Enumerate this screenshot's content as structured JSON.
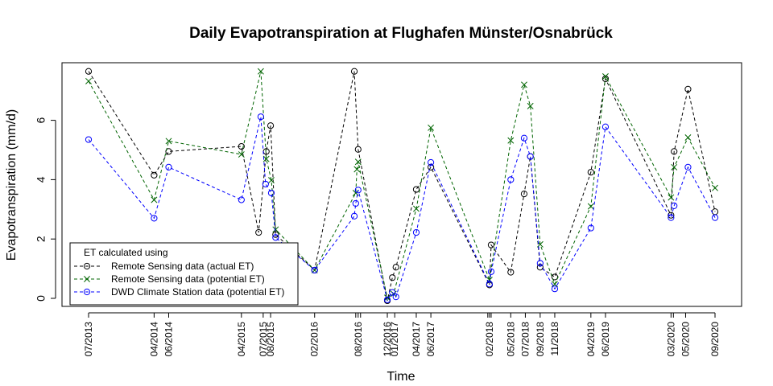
{
  "chart_data": {
    "type": "line",
    "title": "Daily Evapotranspiration at Flughafen Münster/Osnabrück",
    "xlabel": "Time",
    "ylabel": "Evapotranspiration (mm/d)",
    "ylim": [
      0,
      7.7
    ],
    "yticks": [
      0,
      2,
      4,
      6
    ],
    "x": [
      "2013-07",
      "2014-04a",
      "2014-04b",
      "2014-06",
      "2015-04",
      "2015-06",
      "2015-07",
      "2015-07b",
      "2015-08",
      "2015-09",
      "2016-02",
      "2016-07",
      "2016-08a",
      "2016-08b",
      "2016-09",
      "2016-11",
      "2016-12",
      "2017-01",
      "2017-04",
      "2017-06",
      "2018-02a",
      "2018-02b",
      "2018-05",
      "2018-07",
      "2018-08",
      "2018-08b",
      "2018-09",
      "2018-11",
      "2019-04",
      "2019-06",
      "2020-03",
      "2020-03b",
      "2020-05",
      "2020-09"
    ],
    "xticks": [
      {
        "date": "2013-07-15",
        "label": "07/2013"
      },
      {
        "date": "2014-04-15",
        "label": "04/2014"
      },
      {
        "date": "2014-06-15",
        "label": "06/2014"
      },
      {
        "date": "2015-04-15",
        "label": "04/2015"
      },
      {
        "date": "2015-07-15",
        "label": "07/2015"
      },
      {
        "date": "2015-08-15",
        "label": "08/2015"
      },
      {
        "date": "2016-02-15",
        "label": "02/2016"
      },
      {
        "date": "2016-08-15",
        "label": "08/2016"
      },
      {
        "date": "2016-12-15",
        "label": "12/2016"
      },
      {
        "date": "2017-01-15",
        "label": "01/2017"
      },
      {
        "date": "2017-04-15",
        "label": "04/2017"
      },
      {
        "date": "2017-06-15",
        "label": "06/2017"
      },
      {
        "date": "2018-02-15",
        "label": "02/2018"
      },
      {
        "date": "2018-05-15",
        "label": "05/2018"
      },
      {
        "date": "2018-07-15",
        "label": "07/2018"
      },
      {
        "date": "2018-09-15",
        "label": "09/2018"
      },
      {
        "date": "2018-11-15",
        "label": "11/2018"
      },
      {
        "date": "2019-04-15",
        "label": "04/2019"
      },
      {
        "date": "2019-06-15",
        "label": "06/2019"
      },
      {
        "date": "2020-03-15",
        "label": "03/2020"
      },
      {
        "date": "2020-05-15",
        "label": "05/2020"
      },
      {
        "date": "2020-09-15",
        "label": "09/2020"
      }
    ],
    "minor_ticks": [
      "2016-08-05",
      "2016-08-25",
      "2018-02-08",
      "2018-02-22",
      "2020-03-25"
    ],
    "series": [
      {
        "name": "Remote Sensing data (actual ET)",
        "color": "#000000",
        "marker": "circle",
        "points": [
          {
            "date": "2013-07-15",
            "y": 7.65
          },
          {
            "date": "2014-04-15",
            "y": 4.15
          },
          {
            "date": "2014-06-15",
            "y": 4.95
          },
          {
            "date": "2015-04-15",
            "y": 5.12
          },
          {
            "date": "2015-06-26",
            "y": 2.22
          },
          {
            "date": "2015-07-28",
            "y": 4.95
          },
          {
            "date": "2015-08-15",
            "y": 5.82
          },
          {
            "date": "2015-09-05",
            "y": 2.15
          },
          {
            "date": "2016-02-15",
            "y": 0.95
          },
          {
            "date": "2016-07-30",
            "y": 7.65
          },
          {
            "date": "2016-08-15",
            "y": 5.02
          },
          {
            "date": "2016-12-15",
            "y": -0.08
          },
          {
            "date": "2017-01-05",
            "y": 0.7
          },
          {
            "date": "2017-01-20",
            "y": 1.05
          },
          {
            "date": "2017-04-15",
            "y": 3.67
          },
          {
            "date": "2017-06-15",
            "y": 4.42
          },
          {
            "date": "2018-02-15",
            "y": 0.45
          },
          {
            "date": "2018-02-22",
            "y": 1.8
          },
          {
            "date": "2018-05-15",
            "y": 0.88
          },
          {
            "date": "2018-07-10",
            "y": 3.52
          },
          {
            "date": "2018-08-05",
            "y": 4.78
          },
          {
            "date": "2018-09-15",
            "y": 1.05
          },
          {
            "date": "2018-11-15",
            "y": 0.72
          },
          {
            "date": "2019-04-15",
            "y": 4.25
          },
          {
            "date": "2019-06-15",
            "y": 7.4
          },
          {
            "date": "2020-03-15",
            "y": 2.8
          },
          {
            "date": "2020-03-28",
            "y": 4.95
          },
          {
            "date": "2020-05-25",
            "y": 7.05
          },
          {
            "date": "2020-09-15",
            "y": 2.92
          }
        ]
      },
      {
        "name": "Remote Sensing data (potential ET)",
        "color": "#006400",
        "marker": "cross",
        "points": [
          {
            "date": "2013-07-15",
            "y": 7.32
          },
          {
            "date": "2014-04-15",
            "y": 3.32
          },
          {
            "date": "2014-06-15",
            "y": 5.3
          },
          {
            "date": "2015-04-15",
            "y": 4.85
          },
          {
            "date": "2015-07-05",
            "y": 7.65
          },
          {
            "date": "2015-07-28",
            "y": 4.7
          },
          {
            "date": "2015-08-18",
            "y": 3.98
          },
          {
            "date": "2015-09-05",
            "y": 2.32
          },
          {
            "date": "2016-02-15",
            "y": 0.95
          },
          {
            "date": "2016-08-05",
            "y": 3.55
          },
          {
            "date": "2016-08-10",
            "y": 4.35
          },
          {
            "date": "2016-08-15",
            "y": 4.6
          },
          {
            "date": "2016-12-15",
            "y": 0.02
          },
          {
            "date": "2017-01-10",
            "y": 0.15
          },
          {
            "date": "2017-04-15",
            "y": 3.02
          },
          {
            "date": "2017-06-15",
            "y": 5.75
          },
          {
            "date": "2018-02-15",
            "y": 0.62
          },
          {
            "date": "2018-05-15",
            "y": 5.32
          },
          {
            "date": "2018-07-10",
            "y": 7.2
          },
          {
            "date": "2018-08-05",
            "y": 6.48
          },
          {
            "date": "2018-09-15",
            "y": 1.82
          },
          {
            "date": "2018-11-15",
            "y": 0.48
          },
          {
            "date": "2019-04-15",
            "y": 3.1
          },
          {
            "date": "2019-06-15",
            "y": 7.48
          },
          {
            "date": "2020-03-15",
            "y": 3.4
          },
          {
            "date": "2020-03-28",
            "y": 4.42
          },
          {
            "date": "2020-05-25",
            "y": 5.42
          },
          {
            "date": "2020-09-15",
            "y": 3.72
          }
        ]
      },
      {
        "name": "DWD Climate Station data (potential ET)",
        "color": "#0000ff",
        "marker": "circle",
        "points": [
          {
            "date": "2013-07-15",
            "y": 5.35
          },
          {
            "date": "2014-04-15",
            "y": 2.7
          },
          {
            "date": "2014-06-15",
            "y": 4.42
          },
          {
            "date": "2015-04-15",
            "y": 3.32
          },
          {
            "date": "2015-07-05",
            "y": 6.12
          },
          {
            "date": "2015-07-25",
            "y": 3.85
          },
          {
            "date": "2015-08-18",
            "y": 3.55
          },
          {
            "date": "2015-09-05",
            "y": 2.05
          },
          {
            "date": "2016-02-15",
            "y": 0.95
          },
          {
            "date": "2016-07-30",
            "y": 2.77
          },
          {
            "date": "2016-08-05",
            "y": 3.2
          },
          {
            "date": "2016-08-15",
            "y": 3.65
          },
          {
            "date": "2016-12-15",
            "y": -0.05
          },
          {
            "date": "2017-01-05",
            "y": 0.2
          },
          {
            "date": "2017-01-20",
            "y": 0.05
          },
          {
            "date": "2017-04-15",
            "y": 2.22
          },
          {
            "date": "2017-06-15",
            "y": 4.58
          },
          {
            "date": "2018-02-15",
            "y": 0.48
          },
          {
            "date": "2018-02-22",
            "y": 0.9
          },
          {
            "date": "2018-05-15",
            "y": 4.0
          },
          {
            "date": "2018-07-10",
            "y": 5.4
          },
          {
            "date": "2018-08-05",
            "y": 4.78
          },
          {
            "date": "2018-09-15",
            "y": 1.18
          },
          {
            "date": "2018-11-15",
            "y": 0.32
          },
          {
            "date": "2019-04-15",
            "y": 2.37
          },
          {
            "date": "2019-06-15",
            "y": 5.78
          },
          {
            "date": "2020-03-15",
            "y": 2.72
          },
          {
            "date": "2020-03-28",
            "y": 3.12
          },
          {
            "date": "2020-05-25",
            "y": 4.42
          },
          {
            "date": "2020-09-15",
            "y": 2.72
          }
        ]
      }
    ],
    "legend": {
      "title": "ET calculated using",
      "position": "bottom-left",
      "entries": [
        "Remote Sensing data (actual ET)",
        "Remote Sensing data (potential ET)",
        "DWD Climate Station data (potential ET)"
      ]
    },
    "grid": false
  }
}
